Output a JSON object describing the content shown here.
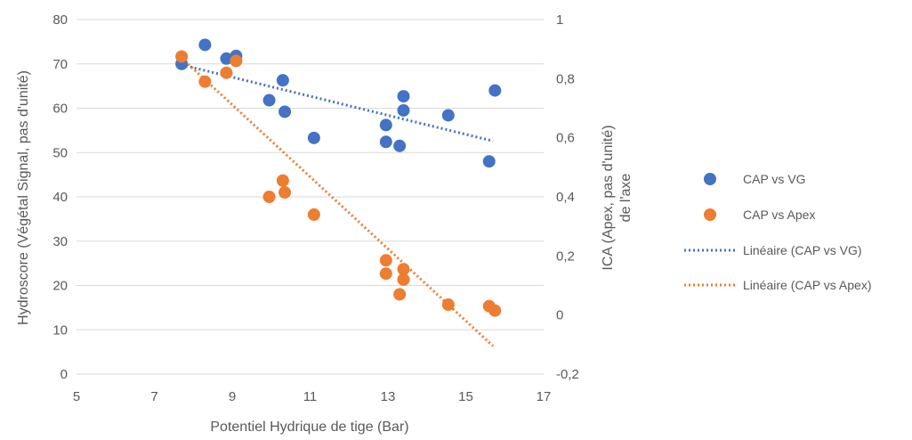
{
  "chart_data": {
    "type": "scatter",
    "xlabel": "Potentiel Hydrique de tige (Bar)",
    "ylabel": "Hydroscore (Végétal Signal, pas d'unité)",
    "y2label_line1": "ICA (Apex, pas d'unité)",
    "y2label_line2": "de l'axe",
    "xlim": [
      5,
      17
    ],
    "xticks": [
      "5",
      "7",
      "9",
      "11",
      "13",
      "15",
      "17"
    ],
    "ylim": [
      0,
      80
    ],
    "yticks": [
      "0",
      "10",
      "20",
      "30",
      "40",
      "50",
      "60",
      "70",
      "80"
    ],
    "y2lim": [
      -0.2,
      1
    ],
    "y2ticks": [
      "-0,2",
      "0",
      "0,2",
      "0,4",
      "0,6",
      "0,8",
      "1"
    ],
    "grid": "horizontal",
    "legend_position": "right",
    "series": [
      {
        "name": "CAP vs VG",
        "axis": "left",
        "color": "#4472C4",
        "points": [
          [
            7.7,
            70
          ],
          [
            8.3,
            74.3
          ],
          [
            8.85,
            71.2
          ],
          [
            9.1,
            71.8
          ],
          [
            9.95,
            61.8
          ],
          [
            10.3,
            66.3
          ],
          [
            10.35,
            59.2
          ],
          [
            11.1,
            53.3
          ],
          [
            12.95,
            56.2
          ],
          [
            12.95,
            52.4
          ],
          [
            13.3,
            51.5
          ],
          [
            13.4,
            62.7
          ],
          [
            13.4,
            59.5
          ],
          [
            14.55,
            58.4
          ],
          [
            15.6,
            48
          ],
          [
            15.75,
            64
          ]
        ]
      },
      {
        "name": "CAP vs Apex",
        "axis": "right",
        "color": "#ED7D31",
        "points": [
          [
            7.7,
            0.875
          ],
          [
            8.3,
            0.79
          ],
          [
            8.85,
            0.82
          ],
          [
            9.1,
            0.86
          ],
          [
            9.95,
            0.4
          ],
          [
            10.3,
            0.455
          ],
          [
            10.35,
            0.415
          ],
          [
            11.1,
            0.34
          ],
          [
            12.95,
            0.185
          ],
          [
            12.95,
            0.14
          ],
          [
            13.3,
            0.07
          ],
          [
            13.4,
            0.155
          ],
          [
            13.4,
            0.12
          ],
          [
            14.55,
            0.035
          ],
          [
            15.6,
            0.03
          ],
          [
            15.75,
            0.015
          ]
        ]
      }
    ],
    "trendlines": [
      {
        "name": "Linéaire (CAP vs VG)",
        "axis": "left",
        "color": "#4472C4",
        "x": [
          7.7,
          15.7
        ],
        "y": [
          69.8,
          52.6
        ]
      },
      {
        "name": "Linéaire (CAP vs Apex)",
        "axis": "right",
        "color": "#ED7D31",
        "x": [
          7.7,
          15.7
        ],
        "y": [
          0.87,
          -0.105
        ]
      }
    ]
  }
}
